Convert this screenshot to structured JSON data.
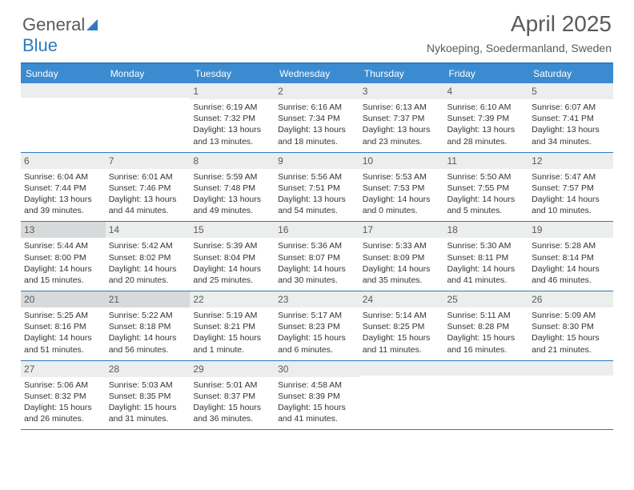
{
  "brand": {
    "part1": "General",
    "part2": "Blue"
  },
  "title": "April 2025",
  "location": "Nykoeping, Soedermanland, Sweden",
  "colors": {
    "header_bg": "#3b8bd0",
    "border": "#2f7bbf",
    "daynum_bg": "#eceded",
    "daynum_shade": "#d8d9da",
    "text": "#333333",
    "title_text": "#5a5a5a"
  },
  "weekdays": [
    "Sunday",
    "Monday",
    "Tuesday",
    "Wednesday",
    "Thursday",
    "Friday",
    "Saturday"
  ],
  "weeks": [
    [
      {
        "n": "",
        "sr": "",
        "ss": "",
        "dl": ""
      },
      {
        "n": "",
        "sr": "",
        "ss": "",
        "dl": ""
      },
      {
        "n": "1",
        "sr": "Sunrise: 6:19 AM",
        "ss": "Sunset: 7:32 PM",
        "dl": "Daylight: 13 hours and 13 minutes."
      },
      {
        "n": "2",
        "sr": "Sunrise: 6:16 AM",
        "ss": "Sunset: 7:34 PM",
        "dl": "Daylight: 13 hours and 18 minutes."
      },
      {
        "n": "3",
        "sr": "Sunrise: 6:13 AM",
        "ss": "Sunset: 7:37 PM",
        "dl": "Daylight: 13 hours and 23 minutes."
      },
      {
        "n": "4",
        "sr": "Sunrise: 6:10 AM",
        "ss": "Sunset: 7:39 PM",
        "dl": "Daylight: 13 hours and 28 minutes."
      },
      {
        "n": "5",
        "sr": "Sunrise: 6:07 AM",
        "ss": "Sunset: 7:41 PM",
        "dl": "Daylight: 13 hours and 34 minutes."
      }
    ],
    [
      {
        "n": "6",
        "sr": "Sunrise: 6:04 AM",
        "ss": "Sunset: 7:44 PM",
        "dl": "Daylight: 13 hours and 39 minutes."
      },
      {
        "n": "7",
        "sr": "Sunrise: 6:01 AM",
        "ss": "Sunset: 7:46 PM",
        "dl": "Daylight: 13 hours and 44 minutes."
      },
      {
        "n": "8",
        "sr": "Sunrise: 5:59 AM",
        "ss": "Sunset: 7:48 PM",
        "dl": "Daylight: 13 hours and 49 minutes."
      },
      {
        "n": "9",
        "sr": "Sunrise: 5:56 AM",
        "ss": "Sunset: 7:51 PM",
        "dl": "Daylight: 13 hours and 54 minutes."
      },
      {
        "n": "10",
        "sr": "Sunrise: 5:53 AM",
        "ss": "Sunset: 7:53 PM",
        "dl": "Daylight: 14 hours and 0 minutes."
      },
      {
        "n": "11",
        "sr": "Sunrise: 5:50 AM",
        "ss": "Sunset: 7:55 PM",
        "dl": "Daylight: 14 hours and 5 minutes."
      },
      {
        "n": "12",
        "sr": "Sunrise: 5:47 AM",
        "ss": "Sunset: 7:57 PM",
        "dl": "Daylight: 14 hours and 10 minutes."
      }
    ],
    [
      {
        "n": "13",
        "sr": "Sunrise: 5:44 AM",
        "ss": "Sunset: 8:00 PM",
        "dl": "Daylight: 14 hours and 15 minutes.",
        "shade": true
      },
      {
        "n": "14",
        "sr": "Sunrise: 5:42 AM",
        "ss": "Sunset: 8:02 PM",
        "dl": "Daylight: 14 hours and 20 minutes."
      },
      {
        "n": "15",
        "sr": "Sunrise: 5:39 AM",
        "ss": "Sunset: 8:04 PM",
        "dl": "Daylight: 14 hours and 25 minutes."
      },
      {
        "n": "16",
        "sr": "Sunrise: 5:36 AM",
        "ss": "Sunset: 8:07 PM",
        "dl": "Daylight: 14 hours and 30 minutes."
      },
      {
        "n": "17",
        "sr": "Sunrise: 5:33 AM",
        "ss": "Sunset: 8:09 PM",
        "dl": "Daylight: 14 hours and 35 minutes."
      },
      {
        "n": "18",
        "sr": "Sunrise: 5:30 AM",
        "ss": "Sunset: 8:11 PM",
        "dl": "Daylight: 14 hours and 41 minutes."
      },
      {
        "n": "19",
        "sr": "Sunrise: 5:28 AM",
        "ss": "Sunset: 8:14 PM",
        "dl": "Daylight: 14 hours and 46 minutes."
      }
    ],
    [
      {
        "n": "20",
        "sr": "Sunrise: 5:25 AM",
        "ss": "Sunset: 8:16 PM",
        "dl": "Daylight: 14 hours and 51 minutes.",
        "shade": true
      },
      {
        "n": "21",
        "sr": "Sunrise: 5:22 AM",
        "ss": "Sunset: 8:18 PM",
        "dl": "Daylight: 14 hours and 56 minutes.",
        "shade": true
      },
      {
        "n": "22",
        "sr": "Sunrise: 5:19 AM",
        "ss": "Sunset: 8:21 PM",
        "dl": "Daylight: 15 hours and 1 minute."
      },
      {
        "n": "23",
        "sr": "Sunrise: 5:17 AM",
        "ss": "Sunset: 8:23 PM",
        "dl": "Daylight: 15 hours and 6 minutes."
      },
      {
        "n": "24",
        "sr": "Sunrise: 5:14 AM",
        "ss": "Sunset: 8:25 PM",
        "dl": "Daylight: 15 hours and 11 minutes."
      },
      {
        "n": "25",
        "sr": "Sunrise: 5:11 AM",
        "ss": "Sunset: 8:28 PM",
        "dl": "Daylight: 15 hours and 16 minutes."
      },
      {
        "n": "26",
        "sr": "Sunrise: 5:09 AM",
        "ss": "Sunset: 8:30 PM",
        "dl": "Daylight: 15 hours and 21 minutes."
      }
    ],
    [
      {
        "n": "27",
        "sr": "Sunrise: 5:06 AM",
        "ss": "Sunset: 8:32 PM",
        "dl": "Daylight: 15 hours and 26 minutes."
      },
      {
        "n": "28",
        "sr": "Sunrise: 5:03 AM",
        "ss": "Sunset: 8:35 PM",
        "dl": "Daylight: 15 hours and 31 minutes."
      },
      {
        "n": "29",
        "sr": "Sunrise: 5:01 AM",
        "ss": "Sunset: 8:37 PM",
        "dl": "Daylight: 15 hours and 36 minutes."
      },
      {
        "n": "30",
        "sr": "Sunrise: 4:58 AM",
        "ss": "Sunset: 8:39 PM",
        "dl": "Daylight: 15 hours and 41 minutes."
      },
      {
        "n": "",
        "sr": "",
        "ss": "",
        "dl": ""
      },
      {
        "n": "",
        "sr": "",
        "ss": "",
        "dl": ""
      },
      {
        "n": "",
        "sr": "",
        "ss": "",
        "dl": ""
      }
    ]
  ]
}
